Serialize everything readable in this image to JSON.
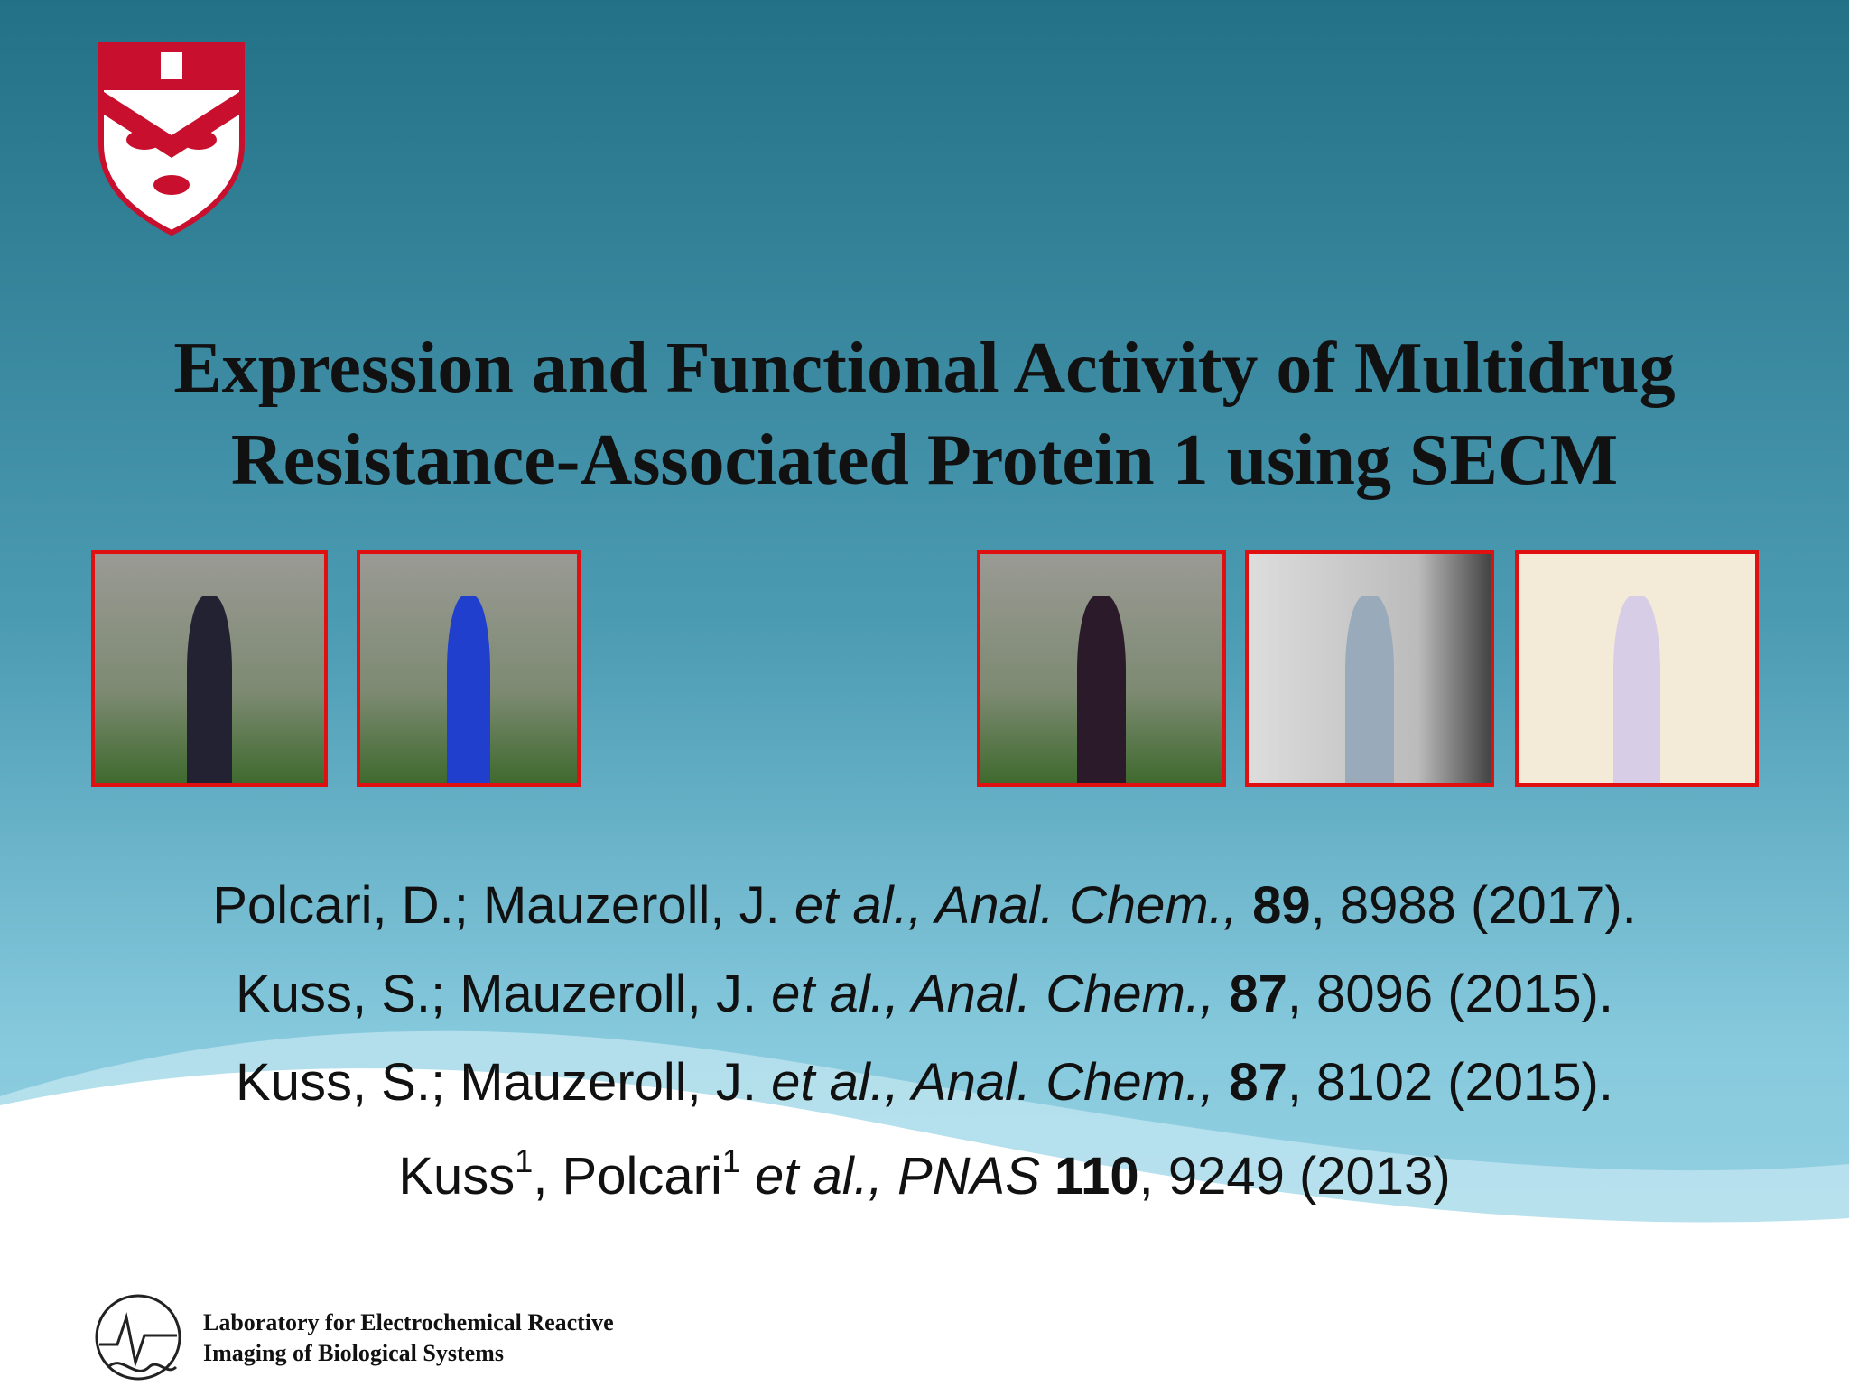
{
  "title": {
    "lines": [
      "Expression and Functional Activity of Multidrug",
      "Resistance-Associated Protein 1 using SECM"
    ]
  },
  "references": [
    {
      "runs": [
        {
          "text": "Polcari, D.; Mauzeroll, J. ",
          "style": "normal"
        },
        {
          "text": "et al., Anal. Chem.,",
          "style": "italic"
        },
        {
          "text": " ",
          "style": "normal"
        },
        {
          "text": "89",
          "style": "bold"
        },
        {
          "text": ", 8988 (2017).",
          "style": "normal"
        }
      ]
    },
    {
      "runs": [
        {
          "text": "Kuss, S.; Mauzeroll, J. ",
          "style": "normal"
        },
        {
          "text": "et al., Anal. Chem.,",
          "style": "italic"
        },
        {
          "text": " ",
          "style": "normal"
        },
        {
          "text": "87",
          "style": "bold"
        },
        {
          "text": ", 8096 (2015).",
          "style": "normal"
        }
      ]
    },
    {
      "runs": [
        {
          "text": "Kuss, S.; Mauzeroll, J. ",
          "style": "normal"
        },
        {
          "text": "et al., Anal. Chem.,",
          "style": "italic"
        },
        {
          "text": " ",
          "style": "normal"
        },
        {
          "text": "87",
          "style": "bold"
        },
        {
          "text": ", 8102 (2015).",
          "style": "normal"
        }
      ]
    },
    {
      "runs": [
        {
          "text": "Kuss",
          "style": "normal"
        },
        {
          "text": "1",
          "style": "sup"
        },
        {
          "text": ", Polcari",
          "style": "normal"
        },
        {
          "text": "1",
          "style": "sup"
        },
        {
          "text": " et al., PNAS",
          "style": "italic"
        },
        {
          "text": " ",
          "style": "normal"
        },
        {
          "text": "110",
          "style": "bold"
        },
        {
          "text": ", 9249 (2013)",
          "style": "normal"
        }
      ]
    }
  ],
  "footer": {
    "lines": [
      "Laboratory for Electrochemical Reactive",
      "Imaging of Biological Systems"
    ]
  }
}
